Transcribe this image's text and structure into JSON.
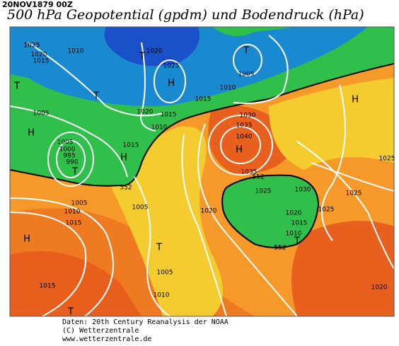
{
  "header": {
    "timestamp": "20NOV1879 00Z",
    "title": "500 hPa Geopotential (gpdm) und Bodendruck (hPa)"
  },
  "map": {
    "labels": [
      "1025",
      "1020",
      "1015",
      "1010",
      "1020",
      "T",
      "T",
      "1005",
      "1025",
      "H",
      "1010",
      "1015",
      "T",
      "T",
      "1005",
      "1020",
      "1015",
      "1010",
      "H",
      "1030",
      "1035",
      "1040",
      "H",
      "1005",
      "1000",
      "995",
      "990",
      "T",
      "1015",
      "H",
      "H",
      "1035",
      "552",
      "552",
      "1025",
      "1030",
      "1025",
      "1025",
      "1005",
      "1010",
      "1015",
      "1005",
      "1020",
      "1020",
      "1025",
      "1015",
      "1010",
      "T",
      "552",
      "H",
      "T",
      "1005",
      "1015",
      "1010",
      "1020",
      "T"
    ]
  },
  "footer": {
    "lines": [
      "Daten: 20th Century Reanalysis der NOAA",
      "(C) Wetterzentrale",
      "www.wetterzentrale.de"
    ]
  }
}
